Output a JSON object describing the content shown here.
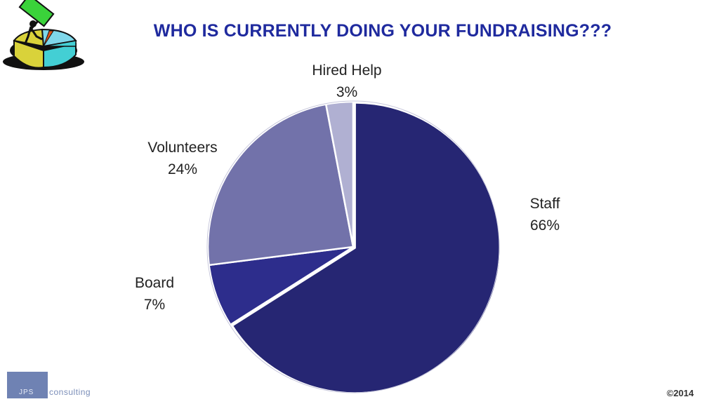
{
  "title": "WHO IS CURRENTLY DOING YOUR FUNDRAISING???",
  "chart_data": {
    "type": "pie",
    "title": "",
    "slices": [
      {
        "label": "Staff",
        "value": 66,
        "value_label": "66%",
        "color": "#262673"
      },
      {
        "label": "Board",
        "value": 7,
        "value_label": "7%",
        "color": "#2d2d8c"
      },
      {
        "label": "Volunteers",
        "value": 24,
        "value_label": "24%",
        "color": "#7272aa"
      },
      {
        "label": "Hired Help",
        "value": 3,
        "value_label": "3%",
        "color": "#b0b0d2"
      }
    ],
    "legend": "none",
    "start_angle": "12 o'clock, clockwise"
  },
  "footer": {
    "logo_jps": "JPS",
    "logo_consulting": "consulting",
    "copyright": "©2014"
  },
  "clipart_icon": "pie-chart-person-icon"
}
